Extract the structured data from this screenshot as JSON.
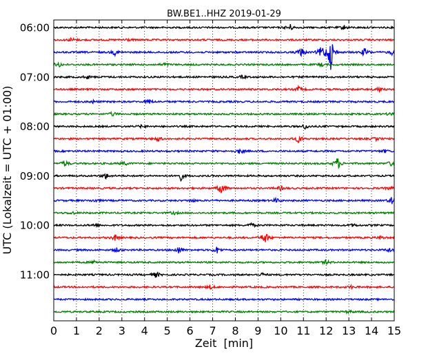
{
  "chart_data": {
    "type": "line",
    "title": "BW.BE1..HHZ 2019-01-29",
    "xlabel": "Zeit  [min]",
    "ylabel": "UTC (Lokalzeit = UTC + 01:00)",
    "xlim": [
      0,
      15
    ],
    "x_ticks": [
      0,
      1,
      2,
      3,
      4,
      5,
      6,
      7,
      8,
      9,
      10,
      11,
      12,
      13,
      14,
      15
    ],
    "y_tick_labels": [
      "06:00",
      "07:00",
      "08:00",
      "09:00",
      "10:00",
      "11:00"
    ],
    "colors": [
      "#000000",
      "#ff0000",
      "#0000ff",
      "#008000"
    ],
    "grid": "vertical dotted",
    "traces": [
      {
        "start": "06:00",
        "events": [
          {
            "x": 10.4,
            "amp": 5
          },
          {
            "x": 12.8,
            "amp": 3
          }
        ]
      },
      {
        "start": "06:15",
        "events": [
          {
            "x": 0.8,
            "amp": 3
          },
          {
            "x": 3.2,
            "amp": 2
          }
        ]
      },
      {
        "start": "06:30",
        "events": [
          {
            "x": 2.7,
            "amp": 4
          },
          {
            "x": 10.9,
            "amp": 7
          },
          {
            "x": 11.8,
            "amp": 10
          },
          {
            "x": 12.2,
            "amp": 26
          },
          {
            "x": 13.7,
            "amp": 6
          },
          {
            "x": 14.9,
            "amp": 3
          }
        ]
      },
      {
        "start": "06:45",
        "events": [
          {
            "x": 0.2,
            "amp": 4
          },
          {
            "x": 4.9,
            "amp": 2
          },
          {
            "x": 11.8,
            "amp": 2
          }
        ]
      },
      {
        "start": "07:00",
        "events": [
          {
            "x": 1.5,
            "amp": 2
          },
          {
            "x": 8.3,
            "amp": 2
          }
        ]
      },
      {
        "start": "07:15",
        "events": [
          {
            "x": 10.8,
            "amp": 4
          },
          {
            "x": 14.3,
            "amp": 4
          }
        ]
      },
      {
        "start": "07:30",
        "events": [
          {
            "x": 1.7,
            "amp": 2
          },
          {
            "x": 4.2,
            "amp": 3
          }
        ]
      },
      {
        "start": "07:45",
        "events": [
          {
            "x": 2.6,
            "amp": 3
          },
          {
            "x": 14.9,
            "amp": 3
          }
        ]
      },
      {
        "start": "08:00",
        "events": [
          {
            "x": 3.9,
            "amp": 2
          },
          {
            "x": 11.1,
            "amp": 4
          }
        ]
      },
      {
        "start": "08:15",
        "events": [
          {
            "x": 4.6,
            "amp": 3
          },
          {
            "x": 10.8,
            "amp": 6
          },
          {
            "x": 14.2,
            "amp": 2
          }
        ]
      },
      {
        "start": "08:30",
        "events": [
          {
            "x": 8.2,
            "amp": 4
          },
          {
            "x": 14.6,
            "amp": 2
          }
        ]
      },
      {
        "start": "08:45",
        "events": [
          {
            "x": 0.5,
            "amp": 4
          },
          {
            "x": 3.1,
            "amp": 3
          },
          {
            "x": 12.5,
            "amp": 9
          },
          {
            "x": 14.9,
            "amp": 5
          }
        ]
      },
      {
        "start": "09:00",
        "events": [
          {
            "x": 2.3,
            "amp": 4
          },
          {
            "x": 5.6,
            "amp": 6
          }
        ]
      },
      {
        "start": "09:15",
        "events": [
          {
            "x": 7.4,
            "amp": 10
          },
          {
            "x": 10.0,
            "amp": 3
          },
          {
            "x": 14.8,
            "amp": 2
          }
        ]
      },
      {
        "start": "09:30",
        "events": [
          {
            "x": 1.8,
            "amp": 2
          },
          {
            "x": 6.1,
            "amp": 2
          },
          {
            "x": 9.8,
            "amp": 3
          },
          {
            "x": 14.9,
            "amp": 5
          }
        ]
      },
      {
        "start": "09:45",
        "events": [
          {
            "x": 0.8,
            "amp": 2
          },
          {
            "x": 5.3,
            "amp": 2
          }
        ]
      },
      {
        "start": "10:00",
        "events": [
          {
            "x": 1.8,
            "amp": 2
          },
          {
            "x": 8.7,
            "amp": 3
          },
          {
            "x": 13.2,
            "amp": 2
          }
        ]
      },
      {
        "start": "10:15",
        "events": [
          {
            "x": 2.7,
            "amp": 4
          },
          {
            "x": 9.3,
            "amp": 10
          },
          {
            "x": 14.4,
            "amp": 2
          }
        ]
      },
      {
        "start": "10:30",
        "events": [
          {
            "x": 2.8,
            "amp": 3
          },
          {
            "x": 5.5,
            "amp": 5
          },
          {
            "x": 7.2,
            "amp": 5
          },
          {
            "x": 14.8,
            "amp": 3
          }
        ]
      },
      {
        "start": "10:45",
        "events": [
          {
            "x": 1.8,
            "amp": 3
          },
          {
            "x": 12.0,
            "amp": 3
          }
        ]
      },
      {
        "start": "11:00",
        "events": [
          {
            "x": 4.5,
            "amp": 4
          },
          {
            "x": 9.2,
            "amp": 2
          }
        ]
      },
      {
        "start": "11:15",
        "events": [
          {
            "x": 6.9,
            "amp": 3
          },
          {
            "x": 13.1,
            "amp": 2
          }
        ]
      },
      {
        "start": "11:30",
        "events": []
      },
      {
        "start": "11:45",
        "events": [
          {
            "x": 13.0,
            "amp": 2
          }
        ]
      }
    ]
  }
}
